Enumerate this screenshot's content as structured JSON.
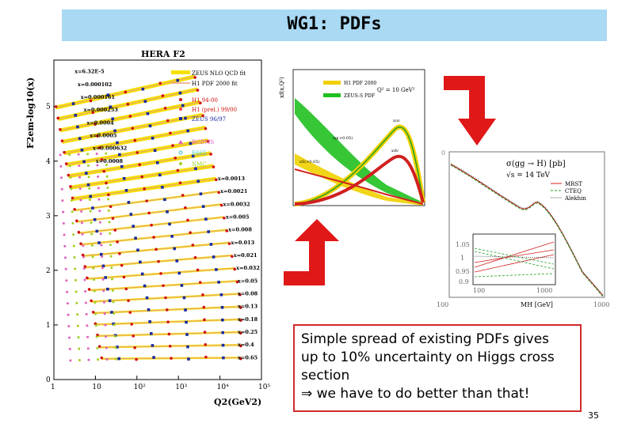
{
  "slide": {
    "title": "WG1: PDFs",
    "page_number": "35",
    "caption": {
      "line1": "Simple spread of existing PDFs gives",
      "line2": "up to 10% uncertainty on Higgs cross",
      "line3": "section",
      "line4": "⇒ we have to do better than that!"
    }
  },
  "hera_plot": {
    "title": "HERA F2",
    "ylabel": "F2em-log10(x)",
    "xlabel": "Q2(GeV2)",
    "yticks": [
      "0",
      "1",
      "2",
      "3",
      "4",
      "5"
    ],
    "xticks": [
      "1",
      "10",
      "10²",
      "10³",
      "10⁴",
      "10⁵"
    ],
    "x_labels": [
      "x=6.32E-5",
      "x=0.000102",
      "x=0.000161",
      "x=0.000253",
      "x=0.0004",
      "x=0.0005",
      "x=0.000632",
      "x=0.0008",
      "x=0.0013",
      "x=0.0021",
      "x=0.0032",
      "x=0.005",
      "x=0.008",
      "x=0.013",
      "x=0.021",
      "x=0.032",
      "x=0.05",
      "x=0.08",
      "x=0.13",
      "x=0.18",
      "x=0.25",
      "x=0.4",
      "x=0.65"
    ],
    "legend": [
      "ZEUS NLO QCD fit",
      "H1 PDF 2000 fit",
      "H1 94-00",
      "H1 (prel.) 99/00",
      "ZEUS 96/97",
      "BCDMS",
      "E665",
      "NMC"
    ],
    "colors": {
      "zeus_fit": "#f5e100",
      "h1_fit": "#e8a080",
      "h1": "#d01010",
      "zeus": "#1a2aa0",
      "bcdms": "#e060c0",
      "e665": "#40c0c0",
      "nmc": "#a0d020"
    }
  },
  "pdf_plot": {
    "legend": [
      "H1 PDF 2000",
      "ZEUS-S PDF"
    ],
    "q2_label": "Q² = 10 GeV²",
    "labels": [
      "xg(×0.05)",
      "xS(×0.05)",
      "xuv",
      "xdv"
    ],
    "colors": {
      "h1": "#f0d000",
      "zeus": "#20c020",
      "red": "#d02020"
    }
  },
  "higgs_plot": {
    "label1": "σ(gg → H)   [pb]",
    "label2": "√s = 14 TeV",
    "legend": [
      "MRST",
      "CTEQ",
      "Alekhin"
    ],
    "xlabel": "MH [GeV]",
    "xtick_left": "100",
    "xtick_right": "1000",
    "ytick_top": "0",
    "inset_yticks": [
      "1.05",
      "1",
      "0.95",
      "0.9"
    ],
    "inset_xticks": [
      "100",
      "1000"
    ],
    "colors": {
      "mrst": "#d02020",
      "cteq": "#20a020",
      "alekhin": "#303030"
    }
  }
}
